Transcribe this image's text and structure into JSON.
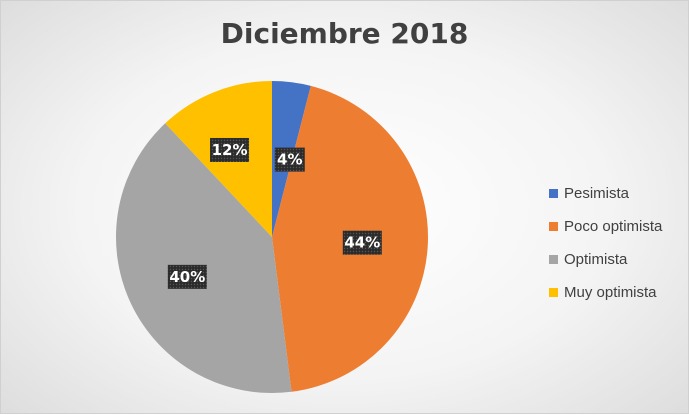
{
  "chart_data": {
    "type": "pie",
    "title": "Diciembre 2018",
    "categories": [
      "Pesimista",
      "Poco optimista",
      "Optimista",
      "Muy optimista"
    ],
    "values": [
      4,
      44,
      40,
      12
    ],
    "data_labels": [
      "4%",
      "44%",
      "40%",
      "12%"
    ],
    "colors": [
      "#4472C4",
      "#ED7D31",
      "#A5A5A5",
      "#FFC000"
    ],
    "start_angle_deg": 0,
    "direction": "clockwise",
    "legend": "right"
  }
}
